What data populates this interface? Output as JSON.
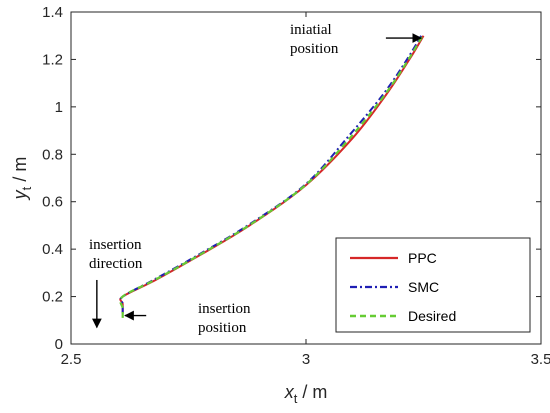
{
  "chart_data": {
    "type": "line",
    "xlabel": {
      "main": "x",
      "sub": "t",
      "unit": " / m"
    },
    "ylabel": {
      "main": "y",
      "sub": "t",
      "unit": " / m"
    },
    "xlim": [
      2.5,
      3.5
    ],
    "ylim": [
      0,
      1.4
    ],
    "xticks": [
      2.5,
      3,
      3.5
    ],
    "xtick_labels": [
      "2.5",
      "3",
      "3.5"
    ],
    "yticks": [
      0,
      0.2,
      0.4,
      0.6,
      0.8,
      1,
      1.2,
      1.4
    ],
    "ytick_labels": [
      "0",
      "0.2",
      "0.4",
      "0.6",
      "0.8",
      "1",
      "1.2",
      "1.4"
    ],
    "grid": false,
    "legend_position": "bottom-right",
    "series": [
      {
        "name": "PPC",
        "color": "#d62728",
        "style": "solid",
        "x": [
          2.61,
          2.61,
          2.61,
          2.68,
          2.77,
          2.88,
          3.0,
          3.1,
          3.17,
          3.22,
          3.25
        ],
        "y": [
          0.13,
          0.17,
          0.2,
          0.27,
          0.37,
          0.5,
          0.67,
          0.87,
          1.05,
          1.2,
          1.3
        ]
      },
      {
        "name": "SMC",
        "color": "#1f1fb4",
        "style": "dashdot",
        "x": [
          2.61,
          2.61,
          2.61,
          2.68,
          2.77,
          2.88,
          3.0,
          3.09,
          3.165,
          3.215,
          3.245
        ],
        "y": [
          0.13,
          0.17,
          0.2,
          0.275,
          0.375,
          0.505,
          0.675,
          0.875,
          1.055,
          1.2,
          1.3
        ]
      },
      {
        "name": "Desired",
        "color": "#66cc33",
        "style": "dashed",
        "x": [
          2.61,
          2.61,
          2.61,
          2.68,
          2.77,
          2.88,
          3.0,
          3.095,
          3.168,
          3.218,
          3.248
        ],
        "y": [
          0.11,
          0.15,
          0.2,
          0.272,
          0.372,
          0.502,
          0.672,
          0.872,
          1.052,
          1.2,
          1.3
        ]
      }
    ],
    "annotations": [
      {
        "id": "initial",
        "lines": [
          "iniatial",
          "position"
        ],
        "arrow_from": [
          3.17,
          1.29
        ],
        "arrow_to": [
          3.245,
          1.29
        ]
      },
      {
        "id": "insertion-position",
        "lines": [
          "insertion",
          "position"
        ],
        "arrow_from": [
          2.66,
          0.12
        ],
        "arrow_to": [
          2.615,
          0.12
        ]
      },
      {
        "id": "insertion-direction",
        "lines": [
          "insertion",
          "direction"
        ],
        "arrow_from": [
          2.555,
          0.27
        ],
        "arrow_to": [
          2.555,
          0.07
        ]
      }
    ]
  }
}
